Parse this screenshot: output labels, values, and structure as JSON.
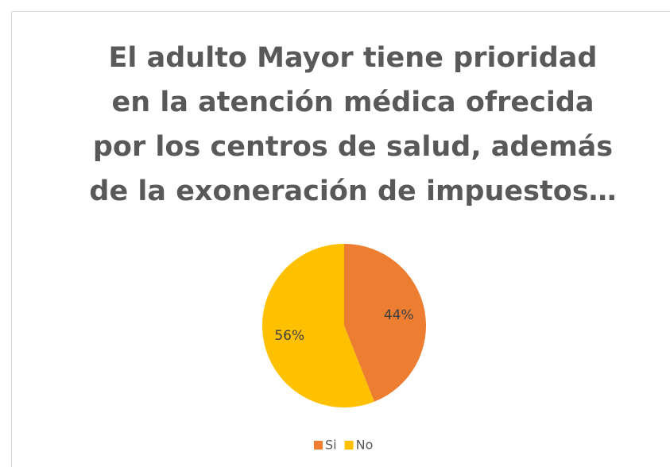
{
  "chart_data": {
    "type": "pie",
    "title": [
      "El adulto Mayor tiene prioridad",
      "en la atención médica ofrecida",
      "por los centros de salud, además",
      "de la exoneración de impuestos…"
    ],
    "categories": [
      "Si",
      "No"
    ],
    "values": [
      44,
      56
    ],
    "value_labels": [
      "44%",
      "56%"
    ],
    "colors": [
      "#ed7d31",
      "#ffc000"
    ],
    "legend": "bottom"
  }
}
